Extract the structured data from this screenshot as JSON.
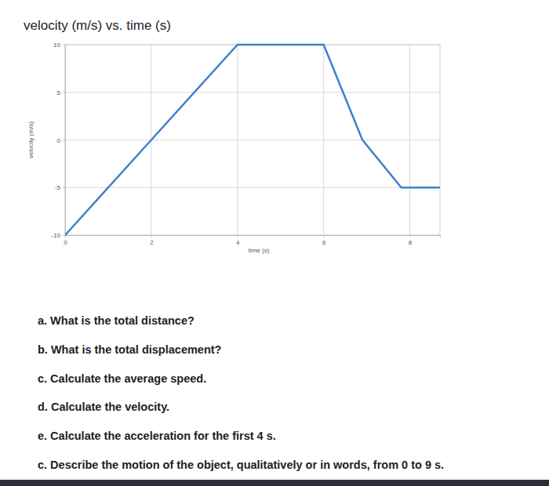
{
  "chart_data": {
    "type": "line",
    "title": "velocity (m/s) vs. time (s)",
    "x_label": "time (s)",
    "y_label": "velocity (m/s)",
    "x": [
      0,
      2,
      4,
      6,
      6.9,
      7.8,
      8.7
    ],
    "values": [
      -10,
      0,
      10,
      10,
      0,
      -5,
      -5
    ],
    "color": "#3f7fcc",
    "xlim": [
      0,
      8.7
    ],
    "xticks": [
      0,
      2,
      4,
      6,
      8
    ],
    "ylim": [
      -10,
      10
    ],
    "yticks": [
      -10,
      -5,
      0,
      5,
      10
    ],
    "grid": true
  },
  "questions": [
    "a. What is the total distance?",
    "b. What is the total displacement?",
    "c. Calculate the average speed.",
    "d. Calculate the velocity.",
    "e. Calculate the acceleration for the first 4 s.",
    "c. Describe the motion of the object, qualitatively or in words, from 0 to 9 s."
  ]
}
